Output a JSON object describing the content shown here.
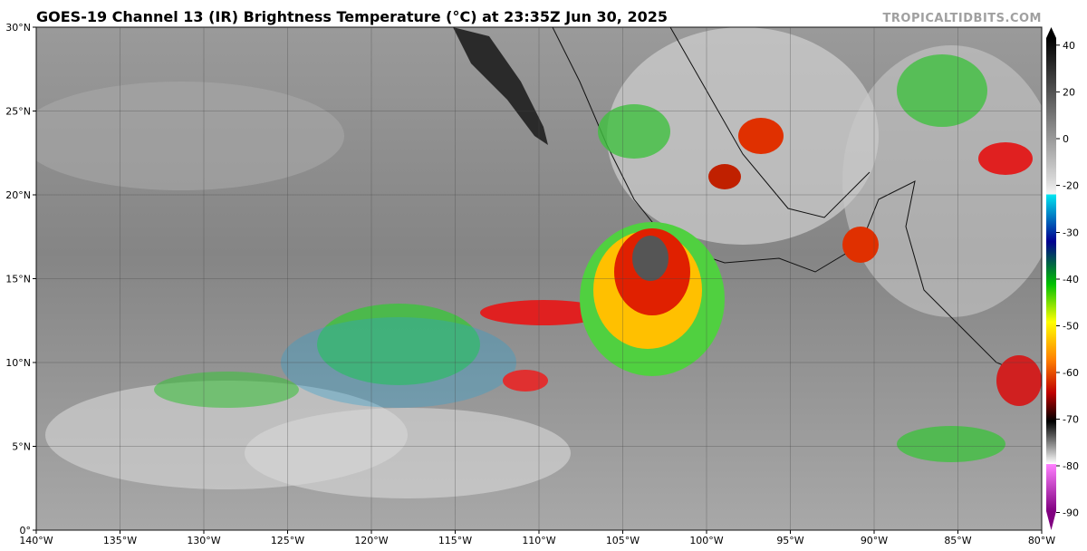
{
  "title": "GOES-19 Channel 13 (IR) Brightness Temperature (°C) at 23:35Z Jun 30, 2025",
  "watermark": "TROPICALTIDBITS.COM",
  "map": {
    "xlim": [
      -140,
      -80
    ],
    "ylim": [
      0,
      30
    ],
    "xticks": [
      {
        "value": -140,
        "label": "140°W"
      },
      {
        "value": -135,
        "label": "135°W"
      },
      {
        "value": -130,
        "label": "130°W"
      },
      {
        "value": -125,
        "label": "125°W"
      },
      {
        "value": -120,
        "label": "120°W"
      },
      {
        "value": -115,
        "label": "115°W"
      },
      {
        "value": -110,
        "label": "110°W"
      },
      {
        "value": -105,
        "label": "105°W"
      },
      {
        "value": -100,
        "label": "100°W"
      },
      {
        "value": -95,
        "label": "95°W"
      },
      {
        "value": -90,
        "label": "90°W"
      },
      {
        "value": -85,
        "label": "85°W"
      },
      {
        "value": -80,
        "label": "80°W"
      }
    ],
    "yticks": [
      {
        "value": 0,
        "label": "0°"
      },
      {
        "value": 5,
        "label": "5°N"
      },
      {
        "value": 10,
        "label": "10°N"
      },
      {
        "value": 15,
        "label": "15°N"
      },
      {
        "value": 20,
        "label": "20°N"
      },
      {
        "value": 25,
        "label": "25°N"
      },
      {
        "value": 30,
        "label": "30°N"
      }
    ]
  },
  "colorbar": {
    "ticks": [
      40,
      20,
      0,
      -20,
      -30,
      -40,
      -50,
      -60,
      -70,
      -80,
      -90
    ]
  }
}
